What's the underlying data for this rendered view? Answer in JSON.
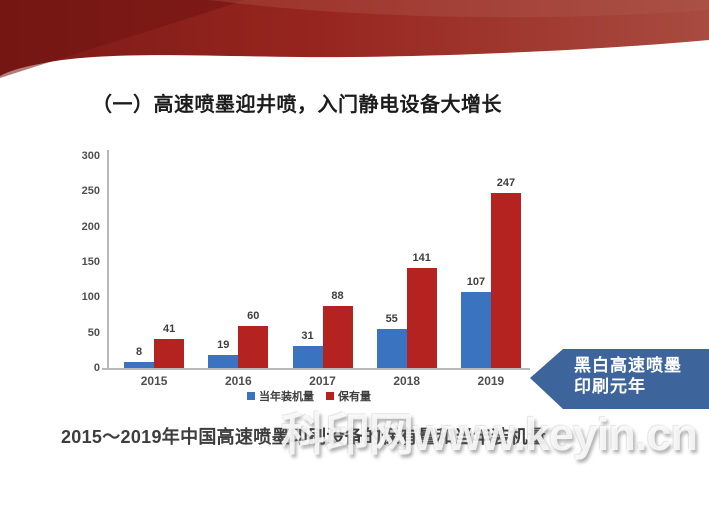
{
  "slide": {
    "title": "（一）高速喷墨迎井喷，入门静电设备大增长",
    "caption": "2015～2019年中国高速喷墨印刷设备的保有量和当年装机量",
    "watermark": "科印网www.keyin.cn",
    "callout": {
      "line1": "黑白高速喷墨",
      "line2": "印刷元年",
      "color": "#3d659c"
    },
    "banner_colors": {
      "left_dark": "#6f1412",
      "mid": "#97251f",
      "right_light": "#a84b40"
    }
  },
  "chart_data": {
    "type": "bar",
    "title": "",
    "xlabel": "",
    "ylabel": "",
    "categories": [
      "2015",
      "2016",
      "2017",
      "2018",
      "2019"
    ],
    "series": [
      {
        "name": "当年装机量",
        "color": "#3a73bf",
        "values": [
          8,
          19,
          31,
          55,
          107
        ]
      },
      {
        "name": "保有量",
        "color": "#b52320",
        "values": [
          41,
          60,
          88,
          141,
          247
        ]
      }
    ],
    "ylim": [
      0,
      300
    ],
    "yticks": [
      0,
      50,
      100,
      150,
      200,
      250,
      300
    ],
    "legend_position": "bottom",
    "grid": false,
    "axis_color": "#b8b8b8"
  }
}
